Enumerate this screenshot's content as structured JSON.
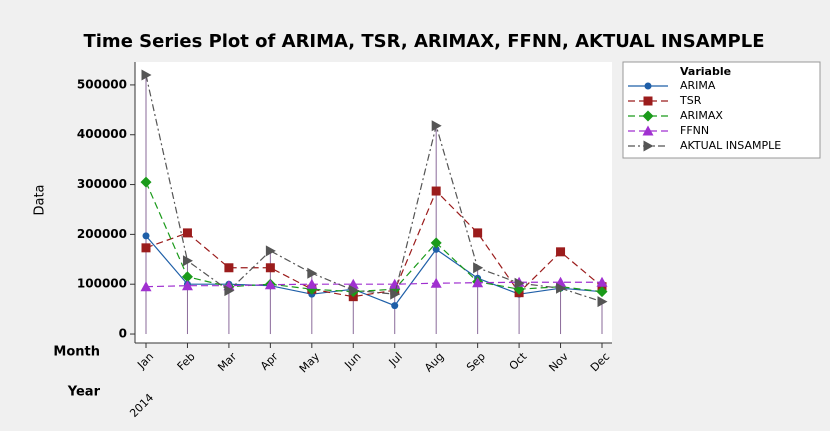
{
  "chart_data": {
    "type": "line",
    "title": "Time Series Plot of ARIMA, TSR, ARIMAX, FFNN, AKTUAL INSAMPLE",
    "ylabel": "Data",
    "x_row_labels": [
      "Month",
      "Year"
    ],
    "year": "2014",
    "categories": [
      "Jan",
      "Feb",
      "Mar",
      "Apr",
      "May",
      "Jun",
      "Jul",
      "Aug",
      "Sep",
      "Oct",
      "Nov",
      "Dec"
    ],
    "ylim": [
      -18000,
      546000
    ],
    "yticks": [
      0,
      100000,
      200000,
      300000,
      400000,
      500000
    ],
    "legend_title": "Variable",
    "legend": "right",
    "series": [
      {
        "name": "ARIMA",
        "color": "#1f5fa8",
        "marker": "circle",
        "dash": "solid",
        "values": [
          197000,
          100000,
          100000,
          97000,
          80000,
          90000,
          57000,
          170000,
          112000,
          80000,
          92000,
          85000
        ]
      },
      {
        "name": "TSR",
        "color": "#9b1c1c",
        "marker": "square",
        "dash": "dashed",
        "values": [
          173000,
          203000,
          133000,
          133000,
          90000,
          75000,
          88000,
          287000,
          203000,
          83000,
          165000,
          95000
        ]
      },
      {
        "name": "ARIMAX",
        "color": "#1a9a1a",
        "marker": "diamond",
        "dash": "dashed",
        "values": [
          305000,
          115000,
          95000,
          100000,
          90000,
          85000,
          90000,
          183000,
          105000,
          90000,
          95000,
          85000
        ]
      },
      {
        "name": "FFNN",
        "color": "#a030d0",
        "marker": "triangle",
        "dash": "dashed",
        "values": [
          95000,
          97000,
          97000,
          99000,
          100000,
          100000,
          100000,
          102000,
          103000,
          104000,
          104000,
          104000
        ]
      },
      {
        "name": "AKTUAL INSAMPLE",
        "color": "#555555",
        "marker": "right-triangle",
        "dash": "dashdot",
        "values": [
          520000,
          147000,
          87000,
          167000,
          122000,
          88000,
          80000,
          418000,
          133000,
          102000,
          92000,
          65000
        ]
      }
    ]
  }
}
